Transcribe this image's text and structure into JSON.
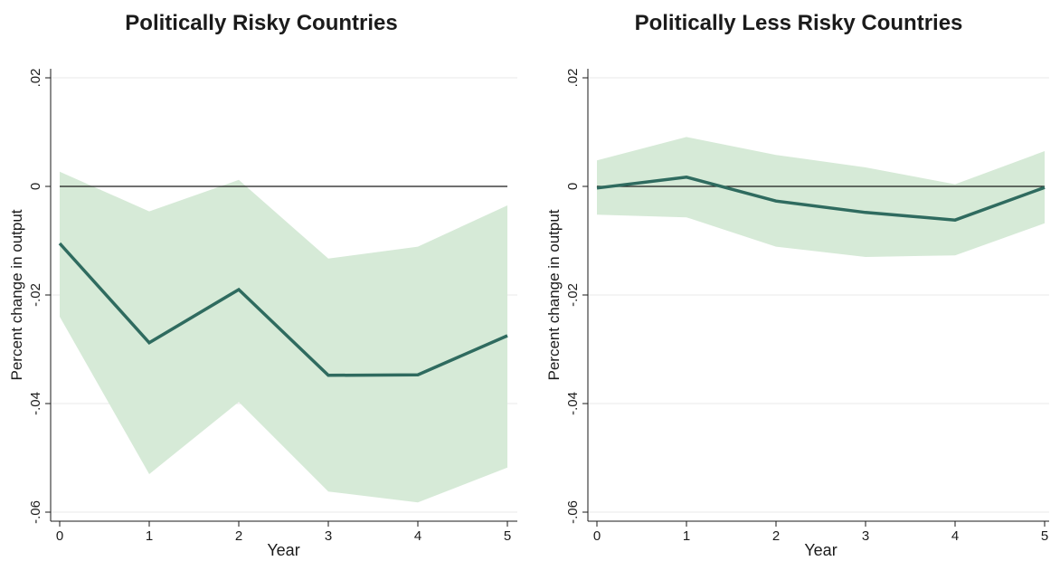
{
  "chart_data": [
    {
      "type": "line",
      "title": "Politically Risky Countries",
      "xlabel": "Year",
      "ylabel": "Percent change in output",
      "x": [
        0,
        1,
        2,
        3,
        4,
        5
      ],
      "xticks": [
        "0",
        "1",
        "2",
        "3",
        "4",
        "5"
      ],
      "yticks": [
        "-.06",
        "-.04",
        "-.02",
        "0",
        ".02"
      ],
      "ytick_values": [
        -0.06,
        -0.04,
        -0.02,
        0,
        0.02
      ],
      "ylim": [
        -0.062,
        0.021
      ],
      "xlim": [
        -0.1,
        5
      ],
      "series": [
        {
          "values": [
            -0.0105,
            -0.0288,
            -0.019,
            -0.0348,
            -0.0347,
            -0.0275
          ]
        }
      ],
      "band": {
        "upper": [
          0.0027,
          -0.0046,
          0.0012,
          -0.0133,
          -0.0111,
          -0.0035
        ],
        "lower": [
          -0.024,
          -0.053,
          -0.0397,
          -0.0562,
          -0.0582,
          -0.0518
        ]
      },
      "reference_line": 0,
      "grid": "horizontal",
      "colors": {
        "line": "#2f6b5f",
        "band": "#d6ead7",
        "grid": "#e8e8e8",
        "zero": "#1a1a1a"
      }
    },
    {
      "type": "line",
      "title": "Politically Less Risky Countries",
      "xlabel": "Year",
      "ylabel": "Percent change in output",
      "x": [
        0,
        1,
        2,
        3,
        4,
        5
      ],
      "xticks": [
        "0",
        "1",
        "2",
        "3",
        "4",
        "5"
      ],
      "yticks": [
        "-.06",
        "-.04",
        "-.02",
        "0",
        ".02"
      ],
      "ytick_values": [
        -0.06,
        -0.04,
        -0.02,
        0,
        0.02
      ],
      "ylim": [
        -0.062,
        0.021
      ],
      "xlim": [
        -0.1,
        5
      ],
      "series": [
        {
          "values": [
            -0.0003,
            0.0017,
            -0.0027,
            -0.0048,
            -0.0062,
            -0.0002
          ]
        }
      ],
      "band": {
        "upper": [
          0.0048,
          0.0091,
          0.0058,
          0.0035,
          0.0004,
          0.0065
        ],
        "lower": [
          -0.0052,
          -0.0057,
          -0.0111,
          -0.013,
          -0.0127,
          -0.0068
        ]
      },
      "reference_line": 0,
      "grid": "horizontal",
      "colors": {
        "line": "#2f6b5f",
        "band": "#d6ead7",
        "grid": "#e8e8e8",
        "zero": "#1a1a1a"
      }
    }
  ]
}
